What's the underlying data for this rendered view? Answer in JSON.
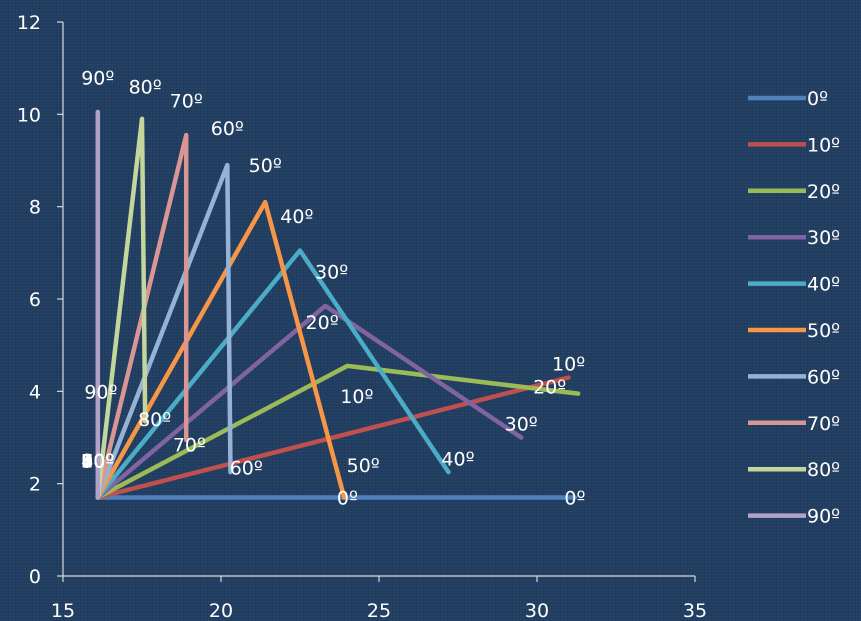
{
  "chart_data": {
    "type": "line",
    "title": "",
    "xlabel": "",
    "ylabel": "",
    "xlim": [
      15,
      35
    ],
    "ylim": [
      0,
      12
    ],
    "x_ticks": [
      "15",
      "20",
      "25",
      "30",
      "35"
    ],
    "y_ticks": [
      "0",
      "2",
      "4",
      "6",
      "8",
      "10",
      "12"
    ],
    "grid": false,
    "legend_position": "right",
    "series": [
      {
        "name": "0º",
        "color": "#4f81bd",
        "x": [
          16.1,
          31.2
        ],
        "y": [
          1.7,
          1.7
        ],
        "labels": [
          {
            "text": "0º",
            "x": 24.0,
            "y": 1.7
          },
          {
            "text": "0º",
            "x": 31.2,
            "y": 1.7
          }
        ]
      },
      {
        "name": "10º",
        "color": "#c0504d",
        "x": [
          16.1,
          31.0
        ],
        "y": [
          1.7,
          4.3
        ],
        "labels": [
          {
            "text": "10º",
            "x": 16.1,
            "y": 2.5
          },
          {
            "text": "10º",
            "x": 24.3,
            "y": 3.9
          },
          {
            "text": "10º",
            "x": 31.0,
            "y": 4.6
          }
        ]
      },
      {
        "name": "20º",
        "color": "#9bbb59",
        "x": [
          16.1,
          24.0,
          31.3
        ],
        "y": [
          1.7,
          4.55,
          3.95
        ],
        "labels": [
          {
            "text": "20º",
            "x": 16.1,
            "y": 2.5
          },
          {
            "text": "20º",
            "x": 23.2,
            "y": 5.5
          },
          {
            "text": "20º",
            "x": 30.4,
            "y": 4.1
          }
        ]
      },
      {
        "name": "30º",
        "color": "#8064a2",
        "x": [
          16.1,
          23.3,
          29.5
        ],
        "y": [
          1.7,
          5.85,
          3.0
        ],
        "labels": [
          {
            "text": "30º",
            "x": 16.1,
            "y": 2.5
          },
          {
            "text": "30º",
            "x": 23.5,
            "y": 6.6
          },
          {
            "text": "30º",
            "x": 29.5,
            "y": 3.3
          }
        ]
      },
      {
        "name": "40º",
        "color": "#4bacc6",
        "x": [
          16.1,
          22.5,
          27.2
        ],
        "y": [
          1.7,
          7.05,
          2.25
        ],
        "labels": [
          {
            "text": "40º",
            "x": 16.1,
            "y": 2.5
          },
          {
            "text": "40º",
            "x": 22.4,
            "y": 7.8
          },
          {
            "text": "40º",
            "x": 27.5,
            "y": 2.55
          }
        ]
      },
      {
        "name": "50º",
        "color": "#f79646",
        "x": [
          16.1,
          21.4,
          23.9
        ],
        "y": [
          1.7,
          8.1,
          1.7
        ],
        "labels": [
          {
            "text": "50º",
            "x": 16.1,
            "y": 2.5
          },
          {
            "text": "50º",
            "x": 21.4,
            "y": 8.9
          },
          {
            "text": "50º",
            "x": 24.5,
            "y": 2.4
          }
        ]
      },
      {
        "name": "60º",
        "color": "#95b3d7",
        "x": [
          16.1,
          20.2,
          20.3
        ],
        "y": [
          1.7,
          8.9,
          2.25
        ],
        "labels": [
          {
            "text": "60º",
            "x": 16.1,
            "y": 2.5
          },
          {
            "text": "60º",
            "x": 20.2,
            "y": 9.7
          },
          {
            "text": "60º",
            "x": 20.8,
            "y": 2.35
          }
        ]
      },
      {
        "name": "70º",
        "color": "#d99694",
        "x": [
          16.1,
          18.9,
          18.9
        ],
        "y": [
          1.7,
          9.55,
          2.95
        ],
        "labels": [
          {
            "text": "70º",
            "x": 16.1,
            "y": 2.5
          },
          {
            "text": "70º",
            "x": 18.9,
            "y": 10.3
          },
          {
            "text": "70º",
            "x": 19.0,
            "y": 2.85
          }
        ]
      },
      {
        "name": "80º",
        "color": "#c3d69b",
        "x": [
          16.1,
          17.5,
          17.6
        ],
        "y": [
          1.7,
          9.9,
          3.35
        ],
        "labels": [
          {
            "text": "80º",
            "x": 16.1,
            "y": 2.5
          },
          {
            "text": "80º",
            "x": 17.6,
            "y": 10.6
          },
          {
            "text": "80º",
            "x": 17.9,
            "y": 3.4
          }
        ]
      },
      {
        "name": "90º",
        "color": "#b2a2c7",
        "x": [
          16.1,
          16.1,
          16.1
        ],
        "y": [
          1.7,
          10.05,
          1.7
        ],
        "labels": [
          {
            "text": "90º",
            "x": 16.1,
            "y": 2.5
          },
          {
            "text": "90º",
            "x": 16.1,
            "y": 10.8
          },
          {
            "text": "90º",
            "x": 16.2,
            "y": 4.0
          }
        ]
      }
    ]
  }
}
